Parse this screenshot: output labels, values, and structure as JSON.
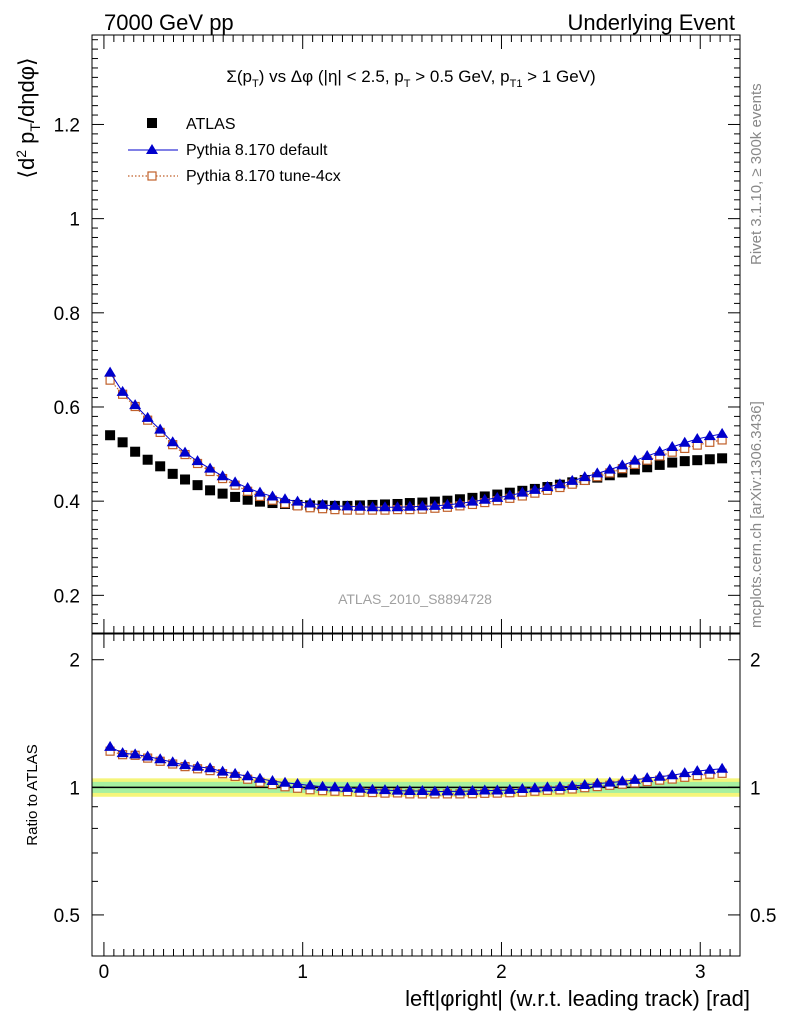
{
  "header": {
    "left": "7000 GeV pp",
    "right": "Underlying Event"
  },
  "side_text": {
    "rivet": "Rivet 3.1.10, ≥ 300k events",
    "mcplots": "mcplots.cern.ch [arXiv:1306.3436]"
  },
  "chart_data": [
    {
      "type": "scatter",
      "title": "Σ(pT) vs Δφ (|η| < 2.5, pT > 0.5 GeV, pT1 > 1 GeV)",
      "analysis_label": "ATLAS_2010_S8894728",
      "ylabel": "⟨d² pT/dηdφ⟩",
      "xlabel": "left|φright| (w.r.t. leading track) [rad]",
      "xlim": [
        -0.06,
        3.2
      ],
      "ylim": [
        0.12,
        1.39
      ],
      "y_ticks": [
        0.2,
        0.4,
        0.6,
        0.8,
        1,
        1.2
      ],
      "legend_position": "top-left",
      "x": [
        0.031,
        0.094,
        0.157,
        0.22,
        0.283,
        0.346,
        0.408,
        0.471,
        0.534,
        0.597,
        0.66,
        0.723,
        0.785,
        0.848,
        0.911,
        0.974,
        1.037,
        1.1,
        1.162,
        1.225,
        1.288,
        1.351,
        1.414,
        1.477,
        1.539,
        1.602,
        1.665,
        1.728,
        1.791,
        1.854,
        1.916,
        1.979,
        2.042,
        2.105,
        2.168,
        2.231,
        2.294,
        2.356,
        2.419,
        2.482,
        2.545,
        2.608,
        2.671,
        2.733,
        2.796,
        2.859,
        2.922,
        2.985,
        3.048,
        3.11
      ],
      "series": [
        {
          "name": "ATLAS",
          "color": "#000000",
          "marker": "square",
          "values": [
            0.54,
            0.525,
            0.505,
            0.488,
            0.474,
            0.458,
            0.446,
            0.434,
            0.423,
            0.416,
            0.409,
            0.403,
            0.399,
            0.396,
            0.394,
            0.392,
            0.391,
            0.391,
            0.39,
            0.39,
            0.391,
            0.392,
            0.393,
            0.394,
            0.396,
            0.397,
            0.399,
            0.401,
            0.404,
            0.407,
            0.41,
            0.414,
            0.418,
            0.422,
            0.426,
            0.43,
            0.435,
            0.44,
            0.445,
            0.45,
            0.455,
            0.461,
            0.467,
            0.472,
            0.477,
            0.482,
            0.485,
            0.487,
            0.489,
            0.491
          ]
        },
        {
          "name": "Pythia 8.170 default",
          "color": "#0000cc",
          "marker": "triangle",
          "values": [
            0.673,
            0.632,
            0.604,
            0.577,
            0.552,
            0.525,
            0.503,
            0.485,
            0.469,
            0.453,
            0.44,
            0.428,
            0.418,
            0.41,
            0.404,
            0.399,
            0.395,
            0.392,
            0.39,
            0.389,
            0.388,
            0.387,
            0.387,
            0.387,
            0.388,
            0.389,
            0.39,
            0.392,
            0.395,
            0.399,
            0.403,
            0.407,
            0.412,
            0.418,
            0.424,
            0.43,
            0.436,
            0.443,
            0.451,
            0.459,
            0.467,
            0.476,
            0.486,
            0.496,
            0.505,
            0.515,
            0.524,
            0.532,
            0.538,
            0.543
          ]
        },
        {
          "name": "Pythia 8.170 tune-4cx",
          "color": "#c0602a",
          "marker": "open-square",
          "values": [
            0.657,
            0.627,
            0.601,
            0.572,
            0.546,
            0.52,
            0.499,
            0.48,
            0.463,
            0.448,
            0.434,
            0.421,
            0.41,
            0.402,
            0.395,
            0.39,
            0.386,
            0.384,
            0.382,
            0.381,
            0.381,
            0.381,
            0.381,
            0.382,
            0.382,
            0.383,
            0.385,
            0.387,
            0.39,
            0.393,
            0.397,
            0.401,
            0.406,
            0.411,
            0.417,
            0.423,
            0.429,
            0.436,
            0.444,
            0.452,
            0.46,
            0.469,
            0.478,
            0.487,
            0.496,
            0.504,
            0.512,
            0.519,
            0.525,
            0.53
          ]
        }
      ]
    },
    {
      "type": "scatter",
      "ylabel": "Ratio to ATLAS",
      "xlabel": "left|φright| (w.r.t. leading track) [rad]",
      "xlim": [
        -0.06,
        3.2
      ],
      "ylim": [
        0.4,
        2.3
      ],
      "log_y": true,
      "y_tick_labels": [
        "0.5",
        "1",
        "2"
      ],
      "x_tick_labels": [
        "0",
        "1",
        "2",
        "3"
      ],
      "reference_band": {
        "inner": [
          0.97,
          1.03
        ],
        "outer": [
          0.95,
          1.05
        ]
      },
      "series": [
        {
          "name": "Pythia 8.170 default",
          "color": "#0000cc",
          "marker": "triangle",
          "values": [
            1.246,
            1.204,
            1.196,
            1.182,
            1.165,
            1.146,
            1.128,
            1.118,
            1.109,
            1.089,
            1.076,
            1.062,
            1.048,
            1.035,
            1.025,
            1.018,
            1.01,
            1.003,
            1.0,
            0.997,
            0.992,
            0.987,
            0.985,
            0.982,
            0.98,
            0.98,
            0.977,
            0.978,
            0.978,
            0.98,
            0.983,
            0.983,
            0.986,
            0.991,
            0.995,
            1.0,
            1.002,
            1.007,
            1.013,
            1.02,
            1.026,
            1.033,
            1.041,
            1.051,
            1.059,
            1.068,
            1.08,
            1.092,
            1.1,
            1.106
          ]
        },
        {
          "name": "Pythia 8.170 tune-4cx",
          "color": "#c0602a",
          "marker": "open-square",
          "values": [
            1.217,
            1.194,
            1.19,
            1.172,
            1.152,
            1.135,
            1.119,
            1.106,
            1.095,
            1.077,
            1.061,
            1.045,
            1.028,
            1.015,
            1.003,
            0.995,
            0.987,
            0.982,
            0.979,
            0.977,
            0.974,
            0.972,
            0.969,
            0.97,
            0.965,
            0.965,
            0.965,
            0.965,
            0.965,
            0.966,
            0.968,
            0.969,
            0.971,
            0.974,
            0.979,
            0.984,
            0.986,
            0.991,
            0.998,
            1.004,
            1.011,
            1.017,
            1.024,
            1.032,
            1.04,
            1.046,
            1.056,
            1.066,
            1.074,
            1.079
          ]
        }
      ]
    }
  ]
}
